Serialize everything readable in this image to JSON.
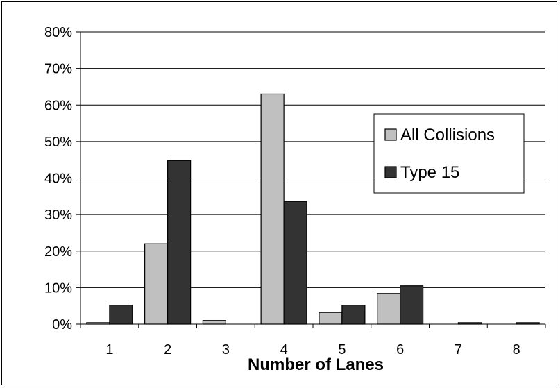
{
  "chart_data": {
    "type": "bar",
    "title": "",
    "xlabel": "Number of Lanes",
    "ylabel": "",
    "categories": [
      "1",
      "2",
      "3",
      "4",
      "5",
      "6",
      "7",
      "8"
    ],
    "series": [
      {
        "name": "All Collisions",
        "color": "#c0c0c0",
        "values": [
          0.4,
          22.0,
          1.0,
          63.0,
          3.2,
          8.4,
          0.0,
          0.0
        ]
      },
      {
        "name": "Type 15",
        "color": "#333333",
        "values": [
          5.2,
          44.8,
          0.0,
          33.6,
          5.2,
          10.5,
          0.4,
          0.4
        ]
      }
    ],
    "ylim": [
      0,
      80
    ],
    "yticks": [
      "0%",
      "10%",
      "20%",
      "30%",
      "40%",
      "50%",
      "60%",
      "70%",
      "80%"
    ],
    "grid": true,
    "legend_position": "right"
  }
}
